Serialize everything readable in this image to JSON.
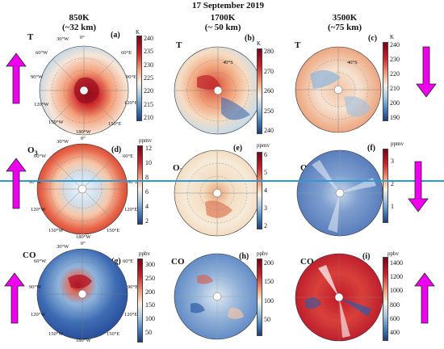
{
  "figure": {
    "date_title": "17 September 2019",
    "columns": [
      {
        "level": "850K",
        "altitude": "(~32 km)"
      },
      {
        "level": "1700K",
        "altitude": "(~ 50 km)"
      },
      {
        "level": "3500K",
        "altitude": "(~75 km)"
      }
    ],
    "variables": {
      "temperature": "T",
      "ozone": "O",
      "ozone_sub": "3",
      "co": "CO"
    },
    "panel_labels": [
      "(a)",
      "(b)",
      "(c)",
      "(d)",
      "(e)",
      "(f)",
      "(g)",
      "(h)",
      "(i)"
    ],
    "geo_labels": {
      "lon_0": "0°",
      "lon_30w": "30°W",
      "lon_60w": "60°W",
      "lon_90w": "90°W",
      "lon_120w": "120°W",
      "lon_150w": "150°W",
      "lon_180w": "180°W",
      "lon_150e": "150°E",
      "lon_120e": "120°E",
      "lon_90e": "90°E",
      "lon_60e": "60°E",
      "lon_30e": "30°E",
      "lat_40s": "40°S"
    },
    "colorbars": {
      "a": {
        "unit": "K",
        "ticks": [
          "240",
          "235",
          "230",
          "225",
          "220",
          "215",
          "210"
        ]
      },
      "b": {
        "unit": "K",
        "ticks": [
          "280",
          "270",
          "260",
          "250",
          "240"
        ]
      },
      "c": {
        "unit": "K",
        "ticks": [
          "240",
          "230",
          "220",
          "210",
          "200",
          "190"
        ]
      },
      "d": {
        "unit": "ppmv",
        "ticks": [
          "12",
          "10",
          "8",
          "6",
          "4",
          "2"
        ]
      },
      "e": {
        "unit": "ppmv",
        "ticks": [
          "6",
          "5",
          "4",
          "3",
          "2"
        ]
      },
      "f": {
        "unit": "ppmv",
        "ticks": [
          "3",
          "2",
          "1"
        ]
      },
      "g": {
        "unit": "ppbv",
        "ticks": [
          "300",
          "250",
          "200",
          "150",
          "100",
          "50"
        ]
      },
      "h": {
        "unit": "ppbv",
        "ticks": [
          "200",
          "150",
          "100",
          "50"
        ]
      },
      "i": {
        "unit": "ppbv",
        "ticks": [
          "1400",
          "1200",
          "1000",
          "800",
          "600",
          "400"
        ]
      }
    },
    "arrows": [
      {
        "row": "T",
        "side": "left",
        "direction": "up"
      },
      {
        "row": "T",
        "side": "right",
        "direction": "down"
      },
      {
        "row": "O3",
        "side": "left",
        "direction": "up"
      },
      {
        "row": "O3",
        "side": "right",
        "direction": "down"
      },
      {
        "row": "CO",
        "side": "left",
        "direction": "up"
      },
      {
        "row": "CO",
        "side": "right",
        "direction": "up"
      }
    ],
    "colors": {
      "arrow": "#ee00ee",
      "divider_line": "#3399cc",
      "warm": "#c8102e",
      "cool": "#2a5aa8"
    }
  }
}
